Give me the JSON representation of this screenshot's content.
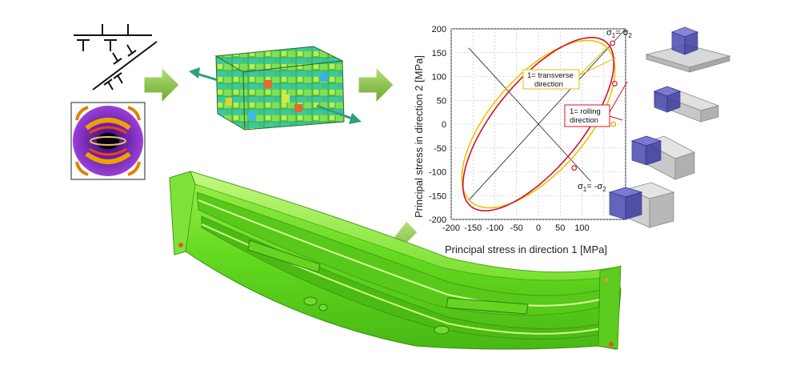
{
  "chart_data": {
    "type": "line",
    "xlabel": "Principal stress in direction 1 [MPa]",
    "ylabel": "Principal stress in direction 2 [MPa]",
    "xlim": [
      -200,
      200
    ],
    "ylim": [
      -200,
      200
    ],
    "xticks": [
      -200,
      -150,
      -100,
      -50,
      0,
      50,
      100
    ],
    "yticks": [
      200,
      150,
      100,
      50,
      0,
      -50,
      -100,
      -150,
      -200
    ],
    "grid": true,
    "series": [
      {
        "color": "#e8c400",
        "center": [
          0,
          0
        ],
        "semi_major": 225,
        "semi_minor": 105,
        "angle_deg": 45
      },
      {
        "color": "#d8102a",
        "center": [
          0,
          0
        ],
        "semi_major": 232,
        "semi_minor": 96,
        "angle_deg": 47
      }
    ],
    "lines": [
      {
        "from": [
          -160,
          -160
        ],
        "to": [
          200,
          200
        ]
      },
      {
        "from": [
          -160,
          160
        ],
        "to": [
          120,
          -120
        ]
      }
    ],
    "markers": [
      {
        "x": 170,
        "y": 170,
        "color": "#d8102a"
      },
      {
        "x": 175,
        "y": 85,
        "color": "#d8102a"
      },
      {
        "x": 172,
        "y": 0,
        "color": "#e8a000"
      },
      {
        "x": 82,
        "y": -92,
        "color": "#d8102a"
      }
    ],
    "annotations": {
      "eq_pos_a": "σ",
      "eq_pos_b": "1",
      "eq_pos_c": "= σ",
      "eq_pos_d": "2",
      "eq_neg_a": "σ",
      "eq_neg_b": "1",
      "eq_neg_c": "= -σ",
      "eq_neg_d": "2",
      "transverse_1": "1= transverse",
      "transverse_2": "direction",
      "rolling_1": "1= rolling",
      "rolling_2": "direction"
    }
  },
  "colors": {
    "arrow_fill": "#7fbf3a",
    "teal_arrow": "#2e9f7a",
    "part_green": "#6ee024",
    "block_blue": "#3a3aa8"
  },
  "icons": [
    "dislocation-symbols",
    "pole-figure",
    "grain-microstructure-cube",
    "specimen-blocks",
    "formed-sheet-part"
  ]
}
